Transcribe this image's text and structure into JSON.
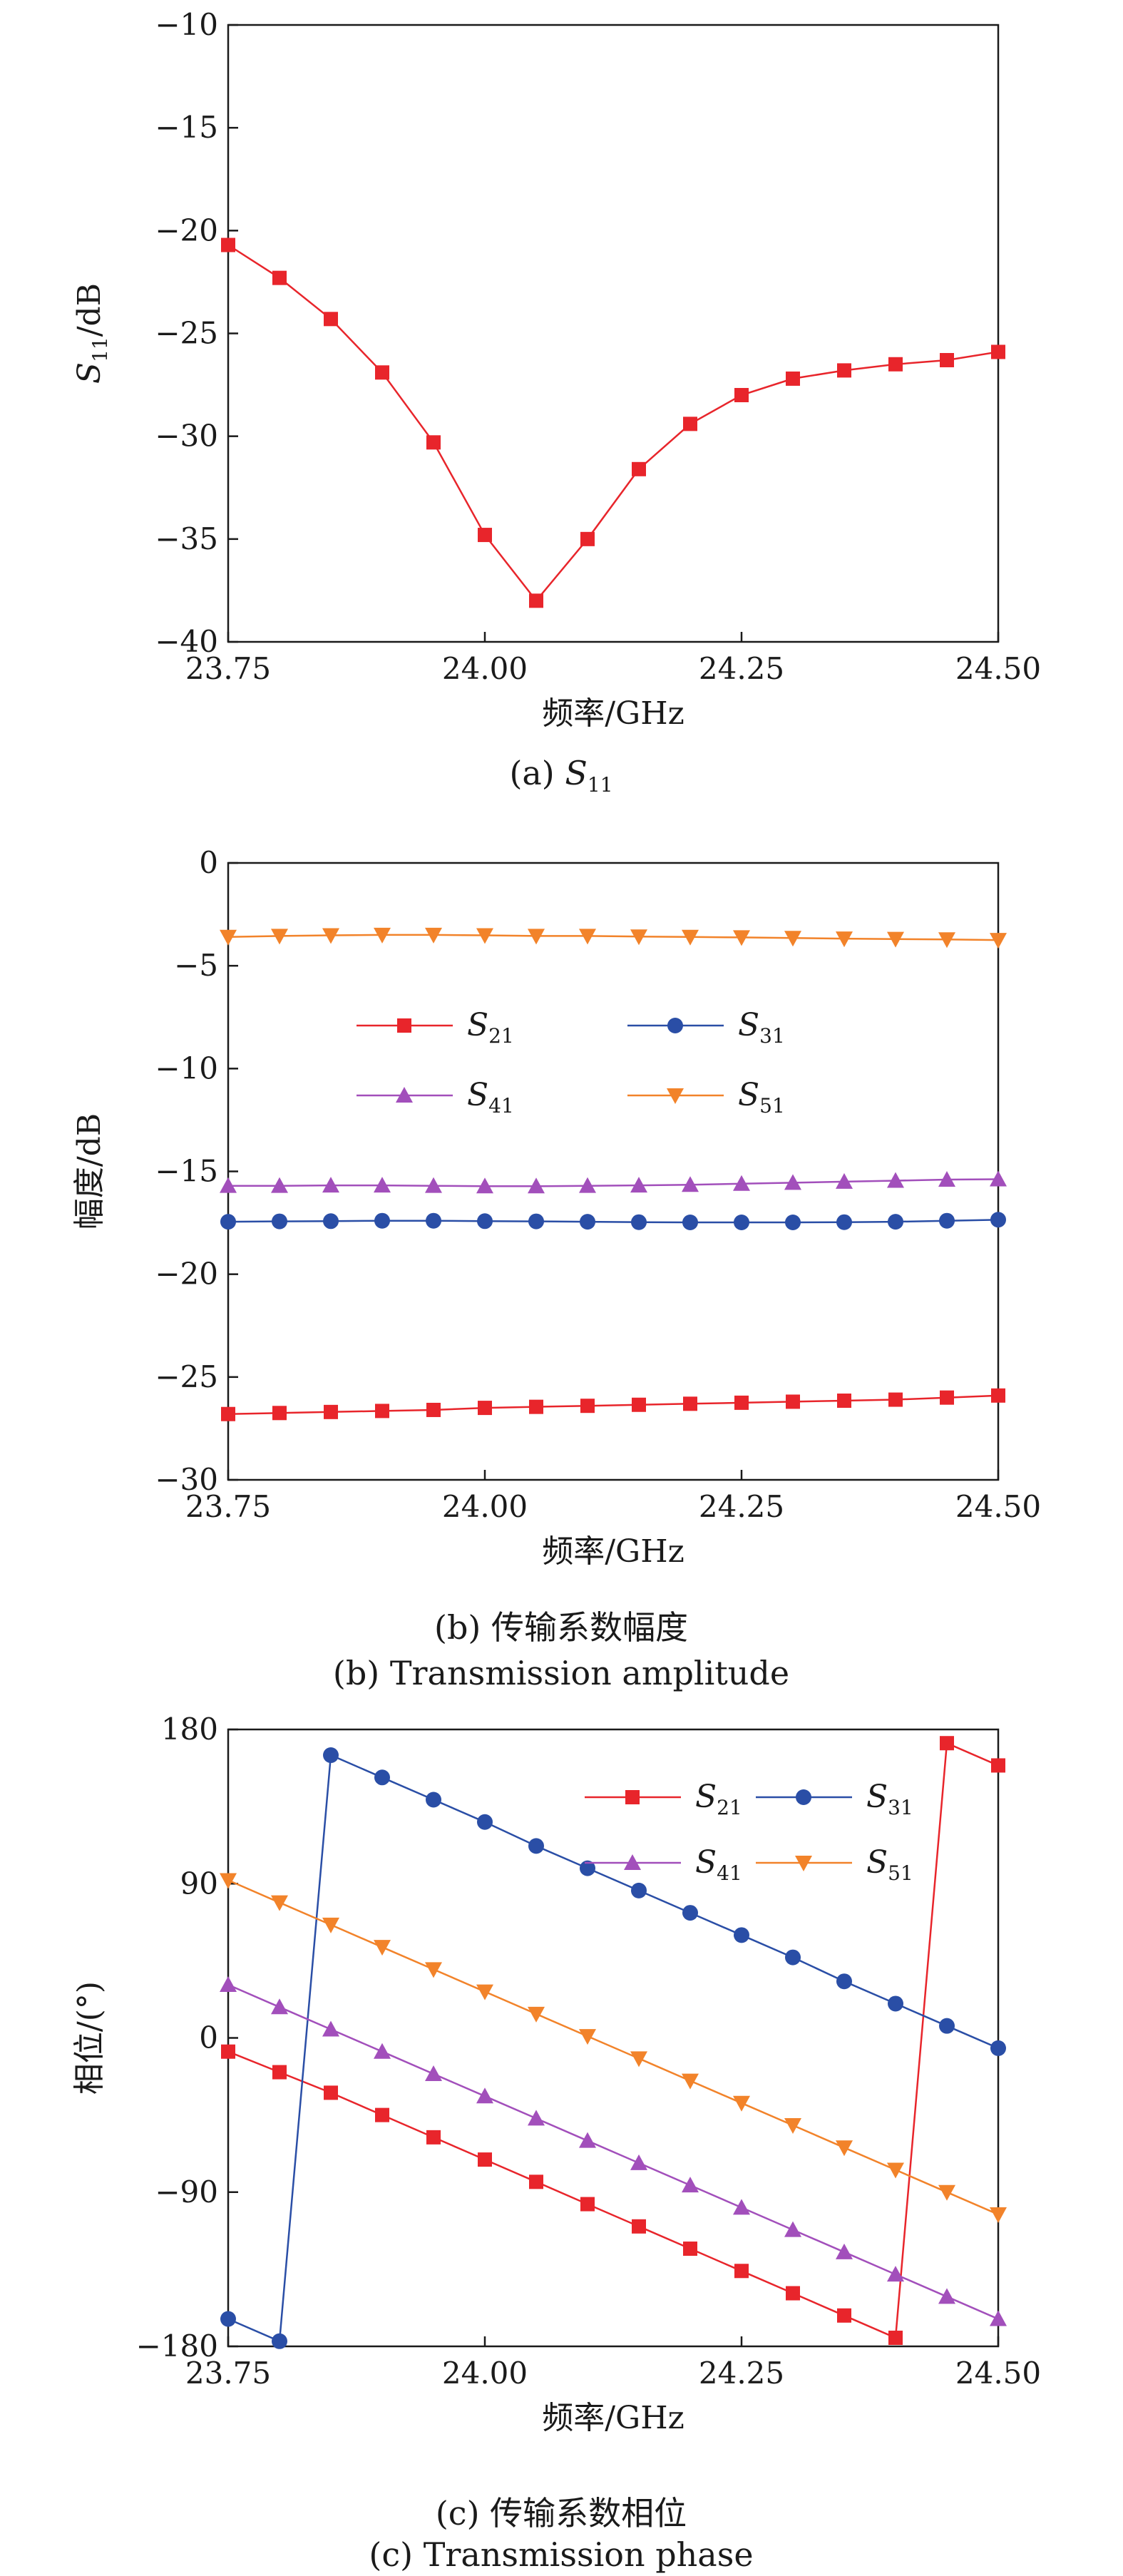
{
  "charts": [
    {
      "caption": "(a) S11",
      "caption_parts": {
        "prefix": "(a) ",
        "symbol": "S",
        "sub": "11"
      },
      "ylabel_parts": {
        "symbol": "S",
        "sub": "11",
        "unit": "/dB"
      }
    },
    {
      "caption": "(b) 传输系数幅度",
      "caption2": "(b) Transmission amplitude"
    },
    {
      "caption": "(c) 传输系数相位",
      "caption2": "(c) Transmission phase"
    }
  ],
  "chart_data": [
    {
      "type": "line",
      "xlabel": "频率/GHz",
      "ylabel": "S11/dB",
      "xlim": [
        23.75,
        24.5
      ],
      "ylim": [
        -40,
        -10
      ],
      "xticks": [
        "23.75",
        "24.00",
        "24.25",
        "24.50"
      ],
      "yticks": [
        "-10",
        "-15",
        "-20",
        "-25",
        "-30",
        "-35",
        "-40"
      ],
      "x": [
        23.75,
        23.8,
        23.85,
        23.9,
        23.95,
        24.0,
        24.05,
        24.1,
        24.15,
        24.2,
        24.25,
        24.3,
        24.35,
        24.4,
        24.45,
        24.5
      ],
      "series": [
        {
          "values": [
            -20.7,
            -22.3,
            -24.3,
            -26.9,
            -30.3,
            -34.8,
            -38.0,
            -35.0,
            -31.6,
            -29.4,
            -28.0,
            -27.2,
            -26.8,
            -26.5,
            -26.3,
            -25.9
          ],
          "color": "#e8252b",
          "marker": "square"
        }
      ],
      "grid": false
    },
    {
      "type": "line",
      "xlabel": "频率/GHz",
      "ylabel": "幅度/dB",
      "xlim": [
        23.75,
        24.5
      ],
      "ylim": [
        -30,
        0
      ],
      "xticks": [
        "23.75",
        "24.00",
        "24.25",
        "24.50"
      ],
      "yticks": [
        "0",
        "-5",
        "-10",
        "-15",
        "-20",
        "-25",
        "-30"
      ],
      "x": [
        23.75,
        23.8,
        23.85,
        23.9,
        23.95,
        24.0,
        24.05,
        24.1,
        24.15,
        24.2,
        24.25,
        24.3,
        24.35,
        24.4,
        24.45,
        24.5
      ],
      "series": [
        {
          "name": "S21",
          "symbol": "S",
          "sub": "21",
          "color": "#e8252b",
          "marker": "square",
          "values": [
            -26.8,
            -26.75,
            -26.7,
            -26.65,
            -26.6,
            -26.5,
            -26.45,
            -26.4,
            -26.35,
            -26.3,
            -26.25,
            -26.2,
            -26.15,
            -26.1,
            -26.0,
            -25.9
          ]
        },
        {
          "name": "S31",
          "symbol": "S",
          "sub": "31",
          "color": "#2a4ea6",
          "marker": "circle",
          "values": [
            -17.45,
            -17.43,
            -17.42,
            -17.4,
            -17.4,
            -17.42,
            -17.43,
            -17.45,
            -17.47,
            -17.48,
            -17.48,
            -17.48,
            -17.47,
            -17.45,
            -17.4,
            -17.35
          ]
        },
        {
          "name": "S41",
          "symbol": "S",
          "sub": "41",
          "color": "#a24fbb",
          "marker": "triangle-up",
          "values": [
            -15.7,
            -15.7,
            -15.68,
            -15.68,
            -15.7,
            -15.72,
            -15.72,
            -15.7,
            -15.68,
            -15.65,
            -15.6,
            -15.55,
            -15.5,
            -15.45,
            -15.4,
            -15.38
          ]
        },
        {
          "name": "S51",
          "symbol": "S",
          "sub": "51",
          "color": "#f2832a",
          "marker": "triangle-down",
          "values": [
            -3.6,
            -3.55,
            -3.52,
            -3.5,
            -3.5,
            -3.52,
            -3.55,
            -3.55,
            -3.58,
            -3.6,
            -3.62,
            -3.65,
            -3.68,
            -3.7,
            -3.72,
            -3.75
          ]
        }
      ],
      "legend": "upper-center, 2 columns",
      "grid": false
    },
    {
      "type": "line",
      "xlabel": "频率/GHz",
      "ylabel": "相位/(°)",
      "xlim": [
        23.75,
        24.5
      ],
      "ylim": [
        -180,
        180
      ],
      "xticks": [
        "23.75",
        "24.00",
        "24.25",
        "24.50"
      ],
      "yticks": [
        "180",
        "90",
        "0",
        "-90",
        "-180"
      ],
      "x": [
        23.75,
        23.8,
        23.85,
        23.9,
        23.95,
        24.0,
        24.05,
        24.1,
        24.15,
        24.2,
        24.25,
        24.3,
        24.35,
        24.4,
        24.45,
        24.5
      ],
      "series": [
        {
          "name": "S21",
          "symbol": "S",
          "sub": "21",
          "color": "#e8252b",
          "marker": "square",
          "values": [
            -8,
            -20,
            -32,
            -45,
            -58,
            -71,
            -84,
            -97,
            -110,
            -123,
            -136,
            -149,
            -162,
            -175,
            172,
            159
          ]
        },
        {
          "name": "S31",
          "symbol": "S",
          "sub": "31",
          "color": "#2a4ea6",
          "marker": "circle",
          "values": [
            -164,
            -177,
            165,
            152,
            139,
            126,
            112,
            99,
            86,
            73,
            60,
            47,
            33,
            20,
            7,
            -6
          ]
        },
        {
          "name": "S41",
          "symbol": "S",
          "sub": "41",
          "color": "#a24fbb",
          "marker": "triangle-up",
          "values": [
            31,
            18,
            5,
            -8,
            -21,
            -34,
            -47,
            -60,
            -73,
            -86,
            -99,
            -112,
            -125,
            -138,
            -151,
            -164
          ]
        },
        {
          "name": "S51",
          "symbol": "S",
          "sub": "51",
          "color": "#f2832a",
          "marker": "triangle-down",
          "values": [
            92,
            79,
            66,
            53,
            40,
            27,
            14,
            1,
            -12,
            -25,
            -38,
            -51,
            -64,
            -77,
            -90,
            -103
          ]
        }
      ],
      "legend": "upper-right, 2 columns",
      "grid": false
    }
  ]
}
